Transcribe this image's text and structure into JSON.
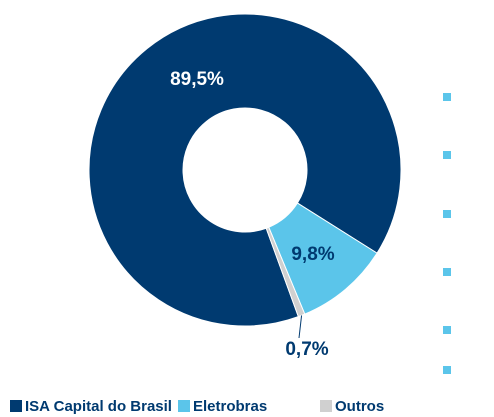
{
  "chart_data": {
    "type": "donut",
    "categories": [
      "ISA Capital do Brasil",
      "Eletrobras",
      "Outros"
    ],
    "values": [
      89.5,
      9.8,
      0.7
    ],
    "value_labels": [
      "89,5%",
      "9,8%",
      "0,7%"
    ],
    "colors": [
      "#003a70",
      "#5bc5ea",
      "#d0d0d0"
    ],
    "legend": "bottom"
  }
}
